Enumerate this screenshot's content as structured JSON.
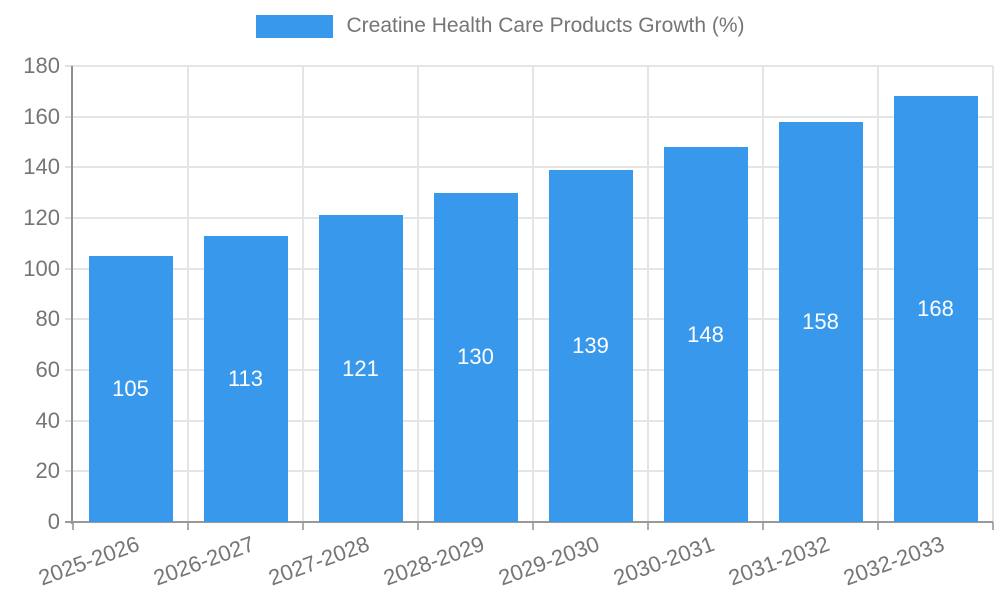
{
  "chart_data": {
    "type": "bar",
    "title": "Creatine Health Care Products Growth (%)",
    "legend_position": "top",
    "categories": [
      "2025-2026",
      "2026-2027",
      "2027-2028",
      "2028-2029",
      "2029-2030",
      "2030-2031",
      "2031-2032",
      "2032-2033"
    ],
    "values": [
      105,
      113,
      121,
      130,
      139,
      148,
      158,
      168
    ],
    "value_labels": [
      "105",
      "113",
      "121",
      "130",
      "139",
      "148",
      "158",
      "168"
    ],
    "xlabel": "",
    "ylabel": "",
    "ylim": [
      0,
      180
    ],
    "yticks": [
      0,
      20,
      40,
      60,
      80,
      100,
      120,
      140,
      160,
      180
    ],
    "grid": true,
    "bar_color": "#3898EC",
    "bar_label_color": "#FFFFFF",
    "axis_text_color": "#757575"
  }
}
